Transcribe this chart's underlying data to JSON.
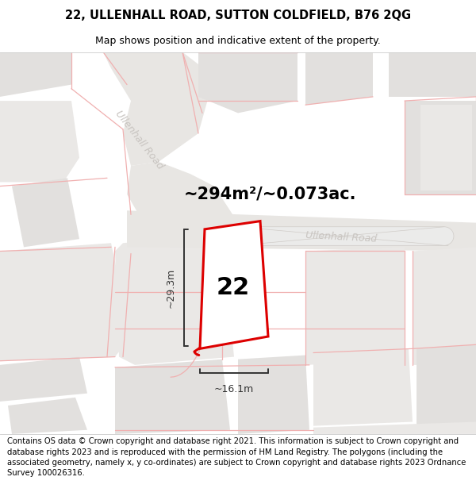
{
  "title_line1": "22, ULLENHALL ROAD, SUTTON COLDFIELD, B76 2QG",
  "title_line2": "Map shows position and indicative extent of the property.",
  "area_label": "~294m²/~0.073ac.",
  "property_number": "22",
  "dim_width": "~16.1m",
  "dim_height": "~29.3m",
  "footer_text": "Contains OS data © Crown copyright and database right 2021. This information is subject to Crown copyright and database rights 2023 and is reproduced with the permission of HM Land Registry. The polygons (including the associated geometry, namely x, y co-ordinates) are subject to Crown copyright and database rights 2023 Ordnance Survey 100026316.",
  "bg_color": "#ffffff",
  "map_bg": "#f7f6f4",
  "plot_line_color": "#dd0000",
  "dim_line_color": "#333333",
  "road_label_color": "#c8c4c0",
  "block_fill_dark": "#e2e0de",
  "block_fill_light": "#eae8e6",
  "road_fill": "#e8e6e3",
  "pink": "#f0b0b0",
  "title_fontsize": 10.5,
  "subtitle_fontsize": 9,
  "footer_fontsize": 7.2
}
